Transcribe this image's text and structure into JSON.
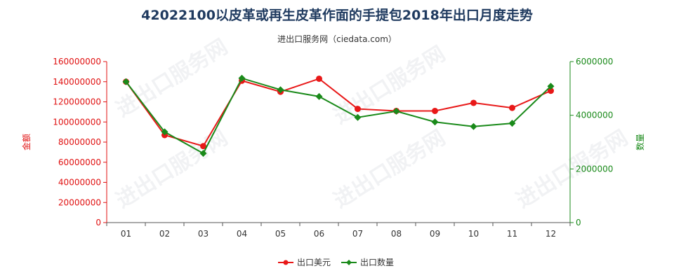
{
  "chart_data": {
    "type": "line",
    "title": "42022100以皮革或再生皮革作面的手提包2018年出口月度走势",
    "subtitle": "进出口服务网（ciedata.com）",
    "categories": [
      "01",
      "02",
      "03",
      "04",
      "05",
      "06",
      "07",
      "08",
      "09",
      "10",
      "11",
      "12"
    ],
    "y_left": {
      "label": "金额",
      "lim": [
        0,
        160000000
      ],
      "ticks": [
        "0",
        "20000000",
        "40000000",
        "60000000",
        "80000000",
        "100000000",
        "120000000",
        "140000000",
        "160000000"
      ]
    },
    "y_right": {
      "label": "数量",
      "lim": [
        0,
        6000000
      ],
      "ticks": [
        "0",
        "2000000",
        "4000000",
        "6000000"
      ]
    },
    "series": [
      {
        "name": "出口美元",
        "axis": "left",
        "color": "#e81818",
        "marker": "circle",
        "values": [
          140000000,
          87000000,
          76000000,
          141000000,
          130000000,
          143000000,
          113000000,
          111000000,
          111000000,
          119000000,
          114000000,
          131000000
        ]
      },
      {
        "name": "出口数量",
        "axis": "right",
        "color": "#1a8a1a",
        "marker": "diamond",
        "values": [
          5250000,
          3380000,
          2580000,
          5380000,
          4950000,
          4700000,
          3920000,
          4150000,
          3750000,
          3580000,
          3700000,
          5080000
        ]
      }
    ],
    "grid": false,
    "legend": "bottom-center",
    "watermark": "进出口服务网"
  }
}
